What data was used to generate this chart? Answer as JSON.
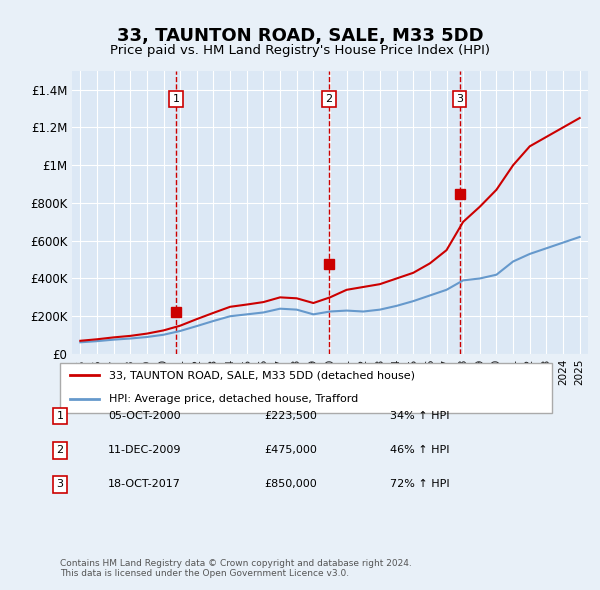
{
  "title": "33, TAUNTON ROAD, SALE, M33 5DD",
  "subtitle": "Price paid vs. HM Land Registry's House Price Index (HPI)",
  "background_color": "#e8f0f8",
  "plot_bg_color": "#dce8f5",
  "sale_color": "#cc0000",
  "hpi_color": "#6699cc",
  "vline_color": "#cc0000",
  "ylim": [
    0,
    1500000
  ],
  "yticks": [
    0,
    200000,
    400000,
    600000,
    800000,
    1000000,
    1200000,
    1400000
  ],
  "ytick_labels": [
    "£0",
    "£200K",
    "£400K",
    "£600K",
    "£800K",
    "£1M",
    "£1.2M",
    "£1.4M"
  ],
  "sale_dates": [
    "2000-10-05",
    "2009-12-11",
    "2017-10-18"
  ],
  "sale_prices": [
    223500,
    475000,
    850000
  ],
  "sale_labels": [
    "1",
    "2",
    "3"
  ],
  "sale_pct": [
    "34%",
    "46%",
    "72%"
  ],
  "sale_date_labels": [
    "05-OCT-2000",
    "11-DEC-2009",
    "18-OCT-2017"
  ],
  "legend_sale_label": "33, TAUNTON ROAD, SALE, M33 5DD (detached house)",
  "legend_hpi_label": "HPI: Average price, detached house, Trafford",
  "footer": "Contains HM Land Registry data © Crown copyright and database right 2024.\nThis data is licensed under the Open Government Licence v3.0.",
  "table_rows": [
    [
      "1",
      "05-OCT-2000",
      "£223,500",
      "34% ↑ HPI"
    ],
    [
      "2",
      "11-DEC-2009",
      "£475,000",
      "46% ↑ HPI"
    ],
    [
      "3",
      "18-OCT-2017",
      "£850,000",
      "72% ↑ HPI"
    ]
  ],
  "hpi_years": [
    1995,
    1996,
    1997,
    1998,
    1999,
    2000,
    2001,
    2002,
    2003,
    2004,
    2005,
    2006,
    2007,
    2008,
    2009,
    2010,
    2011,
    2012,
    2013,
    2014,
    2015,
    2016,
    2017,
    2018,
    2019,
    2020,
    2021,
    2022,
    2023,
    2024,
    2025
  ],
  "hpi_values": [
    62000,
    68000,
    76000,
    82000,
    90000,
    102000,
    122000,
    148000,
    175000,
    200000,
    210000,
    220000,
    240000,
    235000,
    210000,
    225000,
    230000,
    225000,
    235000,
    255000,
    280000,
    310000,
    340000,
    390000,
    400000,
    420000,
    490000,
    530000,
    560000,
    590000,
    620000
  ],
  "sale_line_years": [
    1995,
    1996,
    1997,
    1998,
    1999,
    2000,
    2001,
    2002,
    2003,
    2004,
    2005,
    2006,
    2007,
    2008,
    2009,
    2010,
    2011,
    2012,
    2013,
    2014,
    2015,
    2016,
    2017,
    2018,
    2019,
    2020,
    2021,
    2022,
    2023,
    2024,
    2025
  ],
  "sale_line_values": [
    70000,
    78000,
    88000,
    96000,
    108000,
    125000,
    150000,
    185000,
    218000,
    250000,
    262000,
    275000,
    300000,
    295000,
    270000,
    300000,
    340000,
    355000,
    370000,
    400000,
    430000,
    480000,
    550000,
    700000,
    780000,
    870000,
    1000000,
    1100000,
    1150000,
    1200000,
    1250000
  ]
}
